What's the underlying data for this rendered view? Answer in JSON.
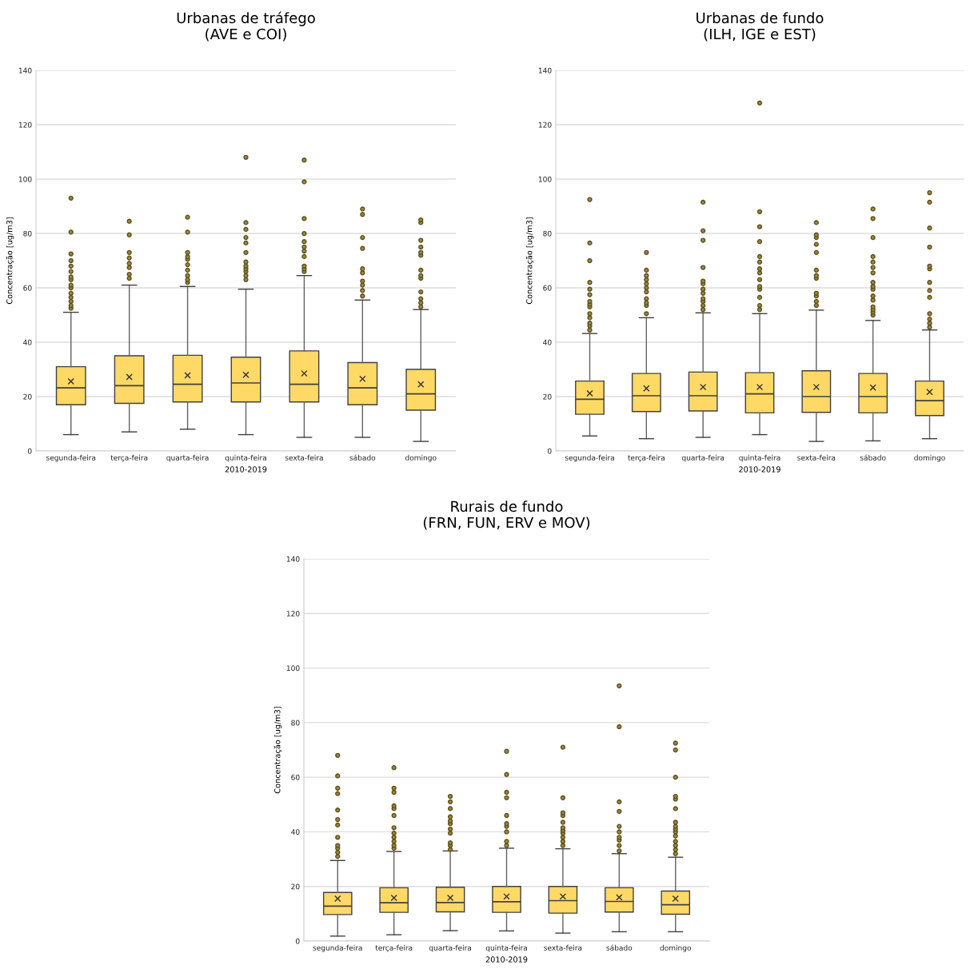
{
  "chart_data": [
    {
      "type": "box",
      "title": "Urbanas de tráfego\n(AVE e COI)",
      "xlabel": "2010-2019",
      "ylabel": "Concentração [ug/m3]",
      "color": "#ffd966",
      "ylim": [
        0,
        140
      ],
      "yticks": [
        0,
        20,
        40,
        60,
        80,
        100,
        120,
        140
      ],
      "grid": "y",
      "categories": [
        "segunda-feira",
        "terça-feira",
        "quarta-feira",
        "quinta-feira",
        "sexta-feira",
        "sábado",
        "domingo"
      ],
      "boxes": [
        {
          "low": 6,
          "q1": 17,
          "median": 23.2,
          "q3": 31,
          "high": 51,
          "mean": 25.6,
          "outliers": [
            52.5,
            53.5,
            55,
            56.5,
            58,
            60,
            61,
            63,
            64,
            66,
            68,
            70,
            72.5,
            80.5,
            93
          ]
        },
        {
          "low": 7,
          "q1": 17.5,
          "median": 24,
          "q3": 35,
          "high": 61,
          "mean": 27.2,
          "outliers": [
            63.5,
            65,
            67.5,
            69,
            71,
            73,
            79.5,
            84.5
          ]
        },
        {
          "low": 8,
          "q1": 18,
          "median": 24.5,
          "q3": 35.2,
          "high": 60.5,
          "mean": 27.8,
          "outliers": [
            62,
            63,
            64.5,
            66.5,
            68.5,
            70.5,
            71.5,
            73,
            80.5,
            86
          ]
        },
        {
          "low": 6,
          "q1": 18,
          "median": 25,
          "q3": 34.5,
          "high": 59.5,
          "mean": 28,
          "outliers": [
            63,
            64.5,
            66,
            67,
            68,
            69.5,
            73,
            76.5,
            78.5,
            81.5,
            84,
            108
          ]
        },
        {
          "low": 5,
          "q1": 18,
          "median": 24.5,
          "q3": 36.8,
          "high": 64.5,
          "mean": 28.5,
          "outliers": [
            66,
            67,
            68,
            71.5,
            73.5,
            75,
            77,
            80,
            85.5,
            99,
            107
          ]
        },
        {
          "low": 5,
          "q1": 17,
          "median": 23.2,
          "q3": 32.5,
          "high": 55.5,
          "mean": 26.5,
          "outliers": [
            57,
            59,
            61,
            62.5,
            65.5,
            67,
            74.5,
            78.5,
            87,
            89
          ]
        },
        {
          "low": 3.5,
          "q1": 15,
          "median": 21,
          "q3": 30,
          "high": 52,
          "mean": 24.5,
          "outliers": [
            53,
            54.5,
            56,
            58.5,
            63.5,
            64.5,
            66.5,
            72,
            73,
            75,
            77.5,
            84,
            85
          ]
        }
      ]
    },
    {
      "type": "box",
      "title": "Urbanas de fundo\n(ILH, IGE e EST)",
      "xlabel": "2010-2019",
      "ylabel": "Concentração [ug/m3]",
      "color": "#ffd966",
      "ylim": [
        0,
        140
      ],
      "yticks": [
        0,
        20,
        40,
        60,
        80,
        100,
        120,
        140
      ],
      "grid": "y",
      "categories": [
        "segunda-feira",
        "terça-feira",
        "quarta-feira",
        "quinta-feira",
        "sexta-feira",
        "sábado",
        "domingo"
      ],
      "boxes": [
        {
          "low": 5.5,
          "q1": 13.5,
          "median": 19,
          "q3": 25.7,
          "high": 43.2,
          "mean": 21.2,
          "outliers": [
            44.5,
            46,
            47,
            49,
            50.5,
            53,
            54,
            55,
            57.5,
            59.5,
            62,
            70,
            76.5,
            92.5
          ]
        },
        {
          "low": 4.5,
          "q1": 14.5,
          "median": 20.3,
          "q3": 28.5,
          "high": 49,
          "mean": 23,
          "outliers": [
            50.5,
            53.5,
            54.5,
            56,
            58.5,
            60,
            61.5,
            63,
            64.5,
            66.5,
            73
          ]
        },
        {
          "low": 5,
          "q1": 14.7,
          "median": 20.3,
          "q3": 29,
          "high": 50.8,
          "mean": 23.5,
          "outliers": [
            52,
            53.5,
            55,
            56,
            58,
            59.5,
            61.5,
            62.5,
            67.5,
            77.5,
            81,
            91.5
          ]
        },
        {
          "low": 6,
          "q1": 14,
          "median": 21,
          "q3": 28.8,
          "high": 50.5,
          "mean": 23.5,
          "outliers": [
            52,
            53.5,
            56.5,
            59.5,
            60.5,
            63,
            65.5,
            67,
            69.5,
            71.5,
            77,
            82.5,
            88,
            128
          ]
        },
        {
          "low": 3.5,
          "q1": 14.2,
          "median": 20,
          "q3": 29.5,
          "high": 51.8,
          "mean": 23.5,
          "outliers": [
            53.5,
            55,
            57,
            58,
            63.5,
            64.5,
            66.5,
            73,
            76,
            78.5,
            79.5,
            84
          ]
        },
        {
          "low": 3.7,
          "q1": 14,
          "median": 20,
          "q3": 28.5,
          "high": 48,
          "mean": 23.3,
          "outliers": [
            50,
            51,
            52,
            53,
            55.5,
            57,
            59.5,
            60.5,
            62,
            65.5,
            67.5,
            69.5,
            71.5,
            78.5,
            85.5,
            89
          ]
        },
        {
          "low": 4.5,
          "q1": 13,
          "median": 18.5,
          "q3": 25.7,
          "high": 44.5,
          "mean": 21.7,
          "outliers": [
            45.5,
            47,
            48.5,
            50.5,
            56.5,
            59,
            62,
            67,
            68,
            75,
            82,
            91.5,
            95
          ]
        }
      ]
    },
    {
      "type": "box",
      "title": "Rurais de fundo\n(FRN, FUN, ERV e MOV)",
      "xlabel": "2010-2019",
      "ylabel": "Concentração [ug/m3]",
      "color": "#ffd966",
      "ylim": [
        0,
        140
      ],
      "yticks": [
        0,
        20,
        40,
        60,
        80,
        100,
        120,
        140
      ],
      "grid": "y",
      "categories": [
        "segunda-feira",
        "terça-feira",
        "quarta-feira",
        "quinta-feira",
        "sexta-feira",
        "sábado",
        "domingo"
      ],
      "boxes": [
        {
          "low": 1.8,
          "q1": 9.7,
          "median": 12.8,
          "q3": 17.8,
          "high": 29.5,
          "mean": 15.5,
          "outliers": [
            31,
            32.5,
            34,
            35,
            38,
            42.5,
            44.5,
            48,
            54,
            56,
            60.5,
            68
          ]
        },
        {
          "low": 2.3,
          "q1": 10.5,
          "median": 14,
          "q3": 19.5,
          "high": 32.8,
          "mean": 15.8,
          "outliers": [
            34,
            35,
            36.5,
            38,
            39.5,
            41.5,
            46,
            48.5,
            49.5,
            54.5,
            56,
            63.5
          ]
        },
        {
          "low": 3.8,
          "q1": 10.7,
          "median": 14.1,
          "q3": 19.7,
          "high": 33,
          "mean": 15.8,
          "outliers": [
            33.5,
            35,
            36,
            39.5,
            41,
            43,
            44,
            45.5,
            48.5,
            51,
            53
          ]
        },
        {
          "low": 3.7,
          "q1": 10.5,
          "median": 14.4,
          "q3": 20,
          "high": 34,
          "mean": 16.3,
          "outliers": [
            35,
            36.5,
            40,
            42,
            43,
            46,
            52.5,
            54.5,
            61,
            69.5
          ]
        },
        {
          "low": 2.9,
          "q1": 10.2,
          "median": 14.8,
          "q3": 20,
          "high": 33.8,
          "mean": 16.3,
          "outliers": [
            35,
            36.5,
            38,
            39.5,
            40.5,
            41.5,
            43.5,
            46,
            47,
            52.5,
            71
          ]
        },
        {
          "low": 3.4,
          "q1": 10.6,
          "median": 14.5,
          "q3": 19.5,
          "high": 32,
          "mean": 16,
          "outliers": [
            33,
            35,
            37,
            38,
            40,
            42,
            47.5,
            51,
            78.5,
            93.5
          ]
        },
        {
          "low": 3.4,
          "q1": 9.8,
          "median": 13.3,
          "q3": 18.3,
          "high": 30.7,
          "mean": 15.5,
          "outliers": [
            32,
            33.5,
            35,
            36.5,
            38.5,
            40,
            41,
            42,
            43.5,
            48.5,
            52,
            53,
            60,
            70,
            72.5
          ]
        }
      ]
    }
  ]
}
